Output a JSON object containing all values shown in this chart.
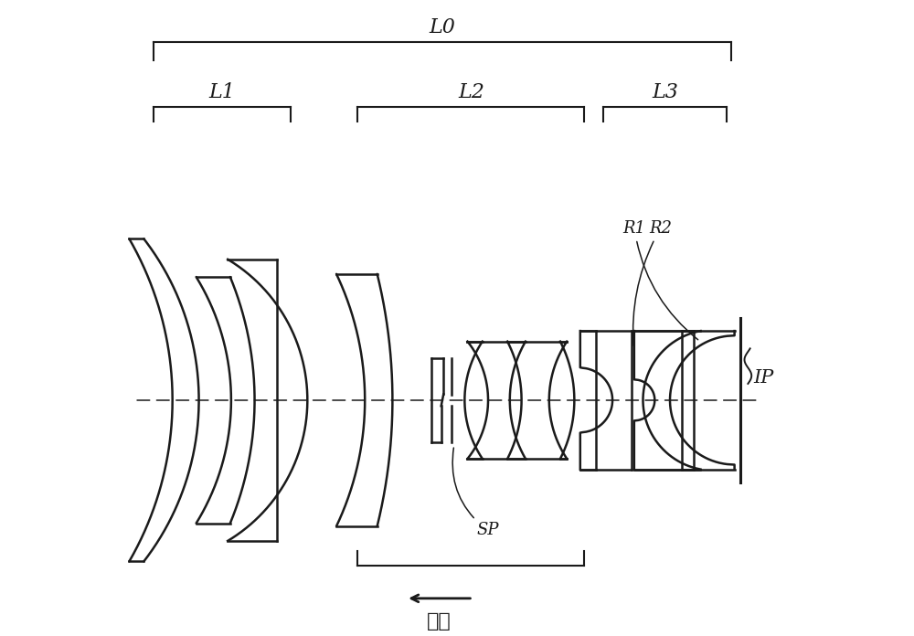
{
  "bg_color": "#ffffff",
  "lc": "#1a1a1a",
  "lw": 1.8,
  "fig_w": 10.0,
  "fig_h": 6.96,
  "dpi": 100,
  "xlim": [
    -5.5,
    6.2
  ],
  "ylim": [
    -4.0,
    6.8
  ]
}
